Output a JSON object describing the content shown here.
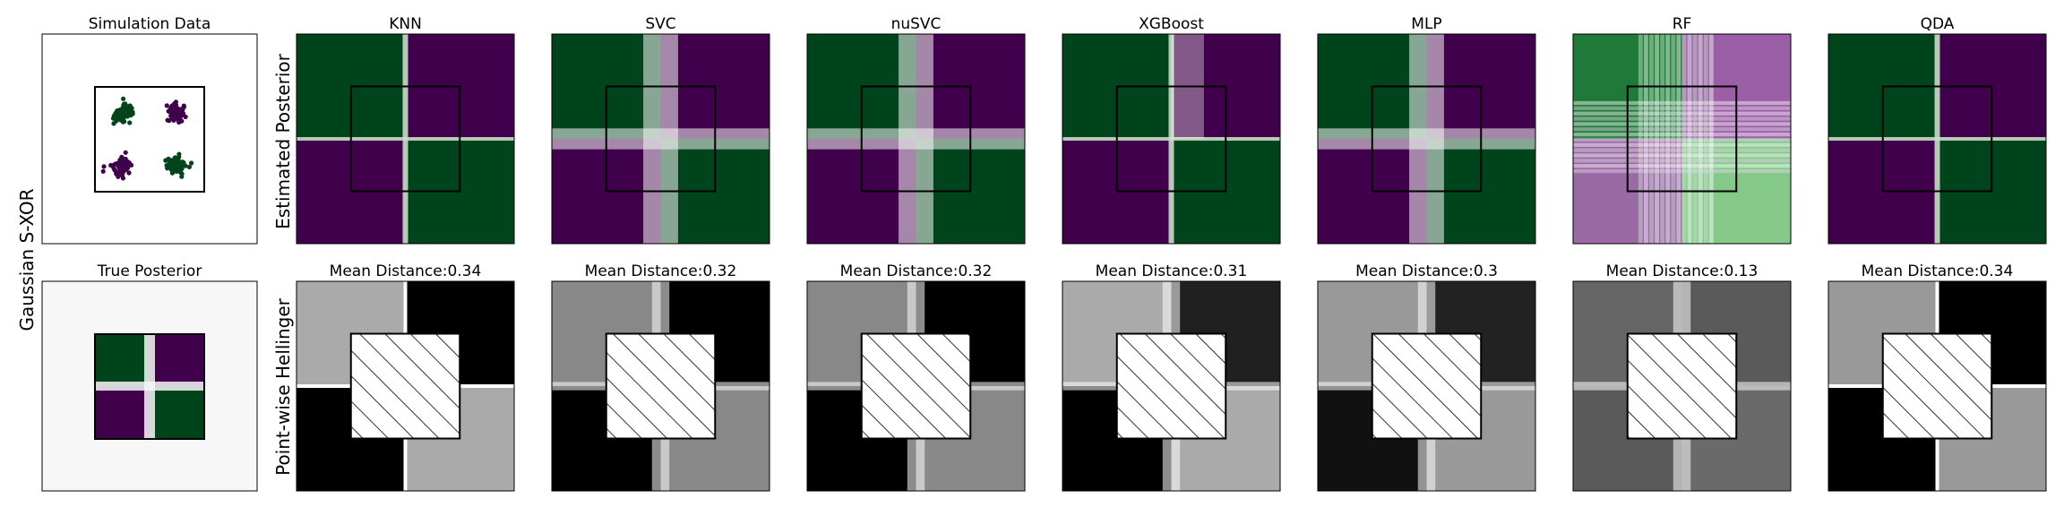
{
  "figure": {
    "row_label": "Gaussian S-XOR",
    "row1_ylabel": "Estimated Posterior",
    "row2_ylabel": "Point-wise Hellinger"
  },
  "colors": {
    "class0": "#00441b",
    "class1": "#40004b",
    "mid": "#f7f7f7",
    "hellinger_low": "#000000",
    "hellinger_high": "#ffffff"
  },
  "chart_data": [
    {
      "type": "scatter",
      "title": "Simulation Data",
      "xlim": [
        -2,
        2
      ],
      "ylim": [
        -2,
        2
      ],
      "clusters": [
        {
          "center": [
            -0.5,
            0.5
          ],
          "class": 0
        },
        {
          "center": [
            0.5,
            0.5
          ],
          "class": 1
        },
        {
          "center": [
            -0.5,
            -0.5
          ],
          "class": 1
        },
        {
          "center": [
            0.5,
            -0.5
          ],
          "class": 0
        }
      ],
      "region": [
        -1,
        1,
        -1,
        1
      ]
    },
    {
      "type": "heatmap",
      "title": "True Posterior",
      "xlim": [
        -2,
        2
      ],
      "ylim": [
        -2,
        2
      ],
      "region": [
        -1,
        1,
        -1,
        1
      ]
    },
    {
      "type": "heatmap",
      "row": "Estimated Posterior",
      "xlim": [
        -2,
        2
      ],
      "ylim": [
        -2,
        2
      ],
      "models": [
        "KNN",
        "SVC",
        "nuSVC",
        "XGBoost",
        "MLP",
        "RF",
        "QDA"
      ]
    },
    {
      "type": "heatmap",
      "row": "Point-wise Hellinger",
      "xlim": [
        -2,
        2
      ],
      "ylim": [
        -2,
        2
      ],
      "models": [
        "KNN",
        "SVC",
        "nuSVC",
        "XGBoost",
        "MLP",
        "RF",
        "QDA"
      ],
      "mean_distance": [
        0.34,
        0.32,
        0.32,
        0.31,
        0.3,
        0.13,
        0.34
      ],
      "mean_distance_labels": [
        "Mean Distance:0.34",
        "Mean Distance:0.32",
        "Mean Distance:0.32",
        "Mean Distance:0.31",
        "Mean Distance:0.3",
        "Mean Distance:0.13",
        "Mean Distance:0.34"
      ]
    }
  ]
}
